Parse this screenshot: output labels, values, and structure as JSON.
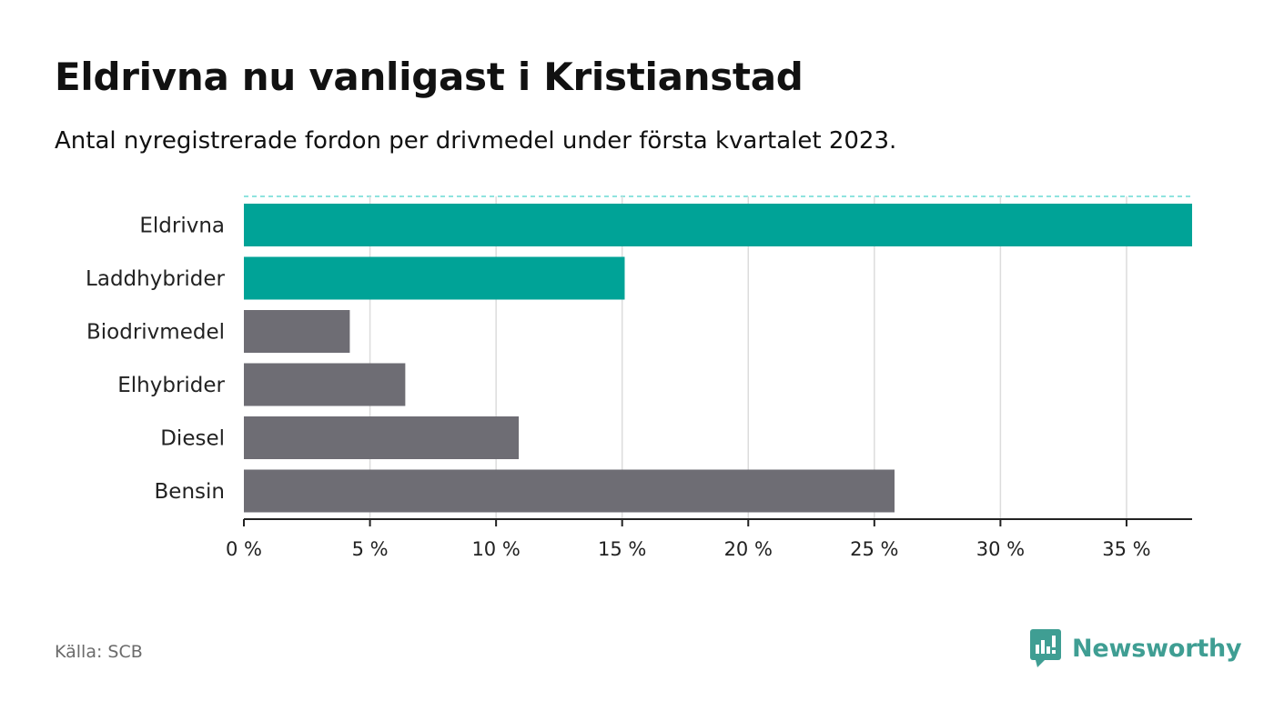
{
  "header": {
    "title": "Eldrivna nu vanligast i Kristianstad",
    "subtitle": "Antal nyregistrerade fordon per drivmedel under första kvartalet 2023."
  },
  "footer": {
    "source": "Källa: SCB",
    "brand": "Newsworthy"
  },
  "colors": {
    "highlight": "#00a397",
    "default": "#6e6d74",
    "brand": "#3f9e93"
  },
  "chart_data": {
    "type": "bar",
    "orientation": "horizontal",
    "title": "Eldrivna nu vanligast i Kristianstad",
    "subtitle": "Antal nyregistrerade fordon per drivmedel under första kvartalet 2023.",
    "categories": [
      "Eldrivna",
      "Laddhybrider",
      "Biodrivmedel",
      "Elhybrider",
      "Diesel",
      "Bensin"
    ],
    "values": [
      37.6,
      15.1,
      4.2,
      6.4,
      10.9,
      25.8
    ],
    "highlighted": [
      true,
      true,
      false,
      false,
      false,
      false
    ],
    "xlabel": "",
    "ylabel": "",
    "xlim": [
      0,
      37.6
    ],
    "xticks": [
      0,
      5,
      10,
      15,
      20,
      25,
      30,
      35
    ],
    "xtick_labels": [
      "0 %",
      "5 %",
      "10 %",
      "15 %",
      "20 %",
      "25 %",
      "30 %",
      "35 %"
    ],
    "grid": true
  }
}
